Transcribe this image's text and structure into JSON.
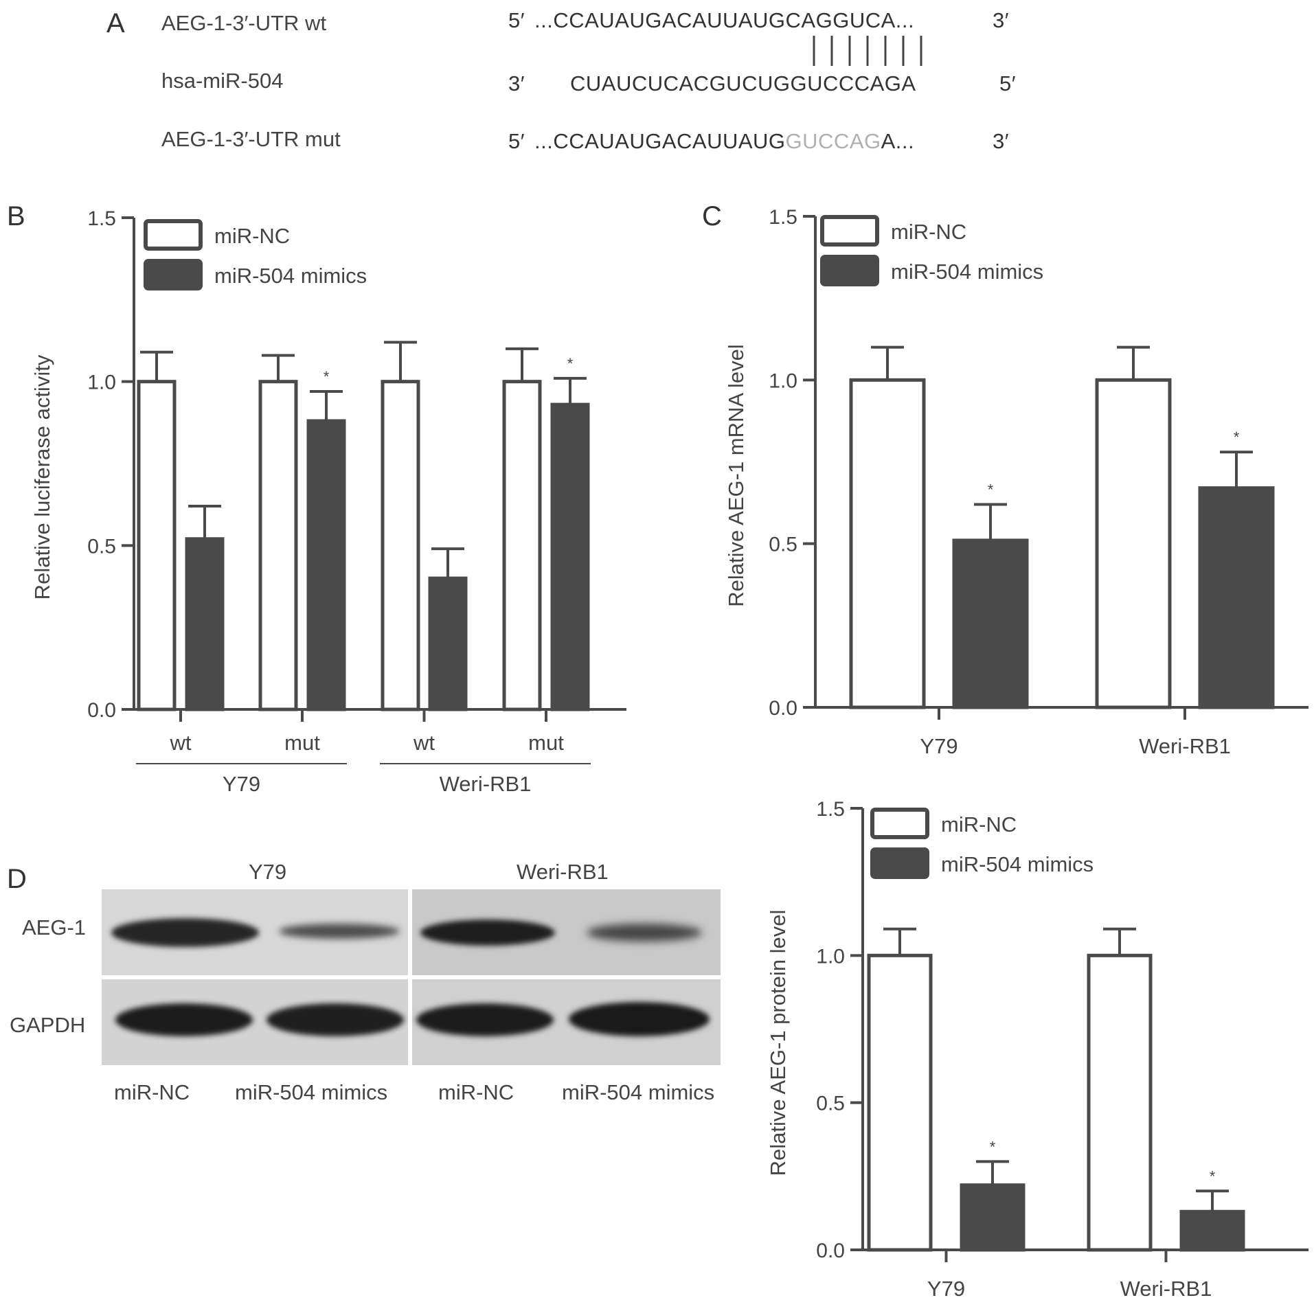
{
  "panel_a": {
    "letter": "A",
    "rows": [
      {
        "label": "AEG-1-3′-UTR wt",
        "left": "5′",
        "seq": "...CCAUAUGACAUUAUGCAGGUCA...",
        "seq_pre": "",
        "seq_mut": "",
        "seq_post": "",
        "right": "3′"
      },
      {
        "label": "hsa-miR-504",
        "left": "3′",
        "seq": "CUAUCUCACGUCUGGUCCCAGA",
        "seq_pre": "",
        "seq_mut": "",
        "seq_post": "",
        "right": "5′"
      },
      {
        "label": "AEG-1-3′-UTR mut",
        "left": "5′",
        "seq": "",
        "seq_pre": "...CCAUAUGACAUUAUG",
        "seq_mut": "GUCCAG",
        "seq_post": "A...",
        "right": "3′"
      }
    ]
  },
  "panel_b_letter": "B",
  "panel_c_letter": "C",
  "panel_d": {
    "letter": "D",
    "cell_lines": [
      "Y79",
      "Weri-RB1"
    ],
    "row_labels": [
      "AEG-1",
      "GAPDH"
    ],
    "lane_labels": [
      "miR-NC",
      "miR-504 mimics",
      "miR-NC",
      "miR-504 mimics"
    ]
  },
  "colors": {
    "filled_bar": "#4a4a4a",
    "open_bar": "#ffffff",
    "axis": "#4a4a4a"
  },
  "chart_data": [
    {
      "id": "B",
      "type": "bar",
      "ylabel": "Relative luciferase activity",
      "ylim": [
        0,
        1.5
      ],
      "yticks": [
        "0.0",
        "0.5",
        "1.0",
        "1.5"
      ],
      "categories": [
        "wt",
        "mut",
        "wt",
        "mut"
      ],
      "category_groups": [
        {
          "label": "Y79",
          "members": [
            0,
            1
          ]
        },
        {
          "label": "Weri-RB1",
          "members": [
            2,
            3
          ]
        }
      ],
      "series": [
        {
          "name": "miR-NC",
          "values": [
            1.0,
            1.0,
            1.0,
            1.0
          ],
          "errors": [
            0.09,
            0.08,
            0.12,
            0.1
          ]
        },
        {
          "name": "miR-504 mimics",
          "values": [
            0.52,
            0.88,
            0.4,
            0.93
          ],
          "errors": [
            0.1,
            0.09,
            0.09,
            0.08
          ]
        }
      ],
      "significance": [
        [
          null,
          "*",
          null,
          "*"
        ],
        [
          null,
          null,
          null,
          null
        ]
      ],
      "legend": "top-left"
    },
    {
      "id": "C",
      "type": "bar",
      "ylabel": "Relative AEG-1 mRNA level",
      "ylim": [
        0,
        1.5
      ],
      "yticks": [
        "0.0",
        "0.5",
        "1.0",
        "1.5"
      ],
      "categories": [
        "Y79",
        "Weri-RB1"
      ],
      "series": [
        {
          "name": "miR-NC",
          "values": [
            1.0,
            1.0
          ],
          "errors": [
            0.1,
            0.1
          ]
        },
        {
          "name": "miR-504 mimics",
          "values": [
            0.51,
            0.67
          ],
          "errors": [
            0.11,
            0.11
          ]
        }
      ],
      "significance": [
        "*",
        "*"
      ],
      "legend": "top-left"
    },
    {
      "id": "D-right",
      "type": "bar",
      "ylabel": "Relative AEG-1 protein level",
      "ylim": [
        0,
        1.5
      ],
      "yticks": [
        "0.0",
        "0.5",
        "1.0",
        "1.5"
      ],
      "categories": [
        "Y79",
        "Weri-RB1"
      ],
      "series": [
        {
          "name": "miR-NC",
          "values": [
            1.0,
            1.0
          ],
          "errors": [
            0.09,
            0.09
          ]
        },
        {
          "name": "miR-504 mimics",
          "values": [
            0.22,
            0.13
          ],
          "errors": [
            0.08,
            0.07
          ]
        }
      ],
      "significance": [
        "*",
        "*"
      ],
      "legend": "top-left"
    }
  ]
}
